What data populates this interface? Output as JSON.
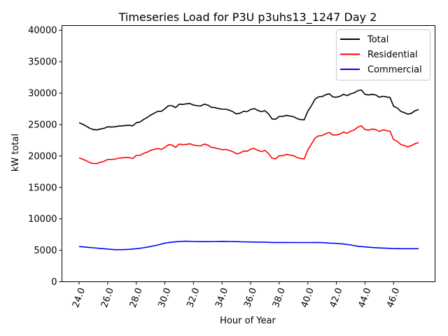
{
  "chart_data": {
    "type": "line",
    "title": "Timeseries Load for P3U p3uhs13_1247  Day 2",
    "xlabel": "Hour of Year",
    "ylabel": "kW total",
    "xlim": [
      22.8,
      48.9
    ],
    "ylim": [
      0,
      40750
    ],
    "xticks": [
      24,
      26,
      28,
      30,
      32,
      34,
      36,
      38,
      40,
      42,
      44,
      46
    ],
    "xtick_labels": [
      "24.0",
      "26.0",
      "28.0",
      "30.0",
      "32.0",
      "34.0",
      "36.0",
      "38.0",
      "40.0",
      "42.0",
      "44.0",
      "46.0"
    ],
    "yticks": [
      0,
      5000,
      10000,
      15000,
      20000,
      25000,
      30000,
      35000,
      40000
    ],
    "ytick_labels": [
      "0",
      "5000",
      "10000",
      "15000",
      "20000",
      "25000",
      "30000",
      "35000",
      "40000"
    ],
    "grid": false,
    "legend_position": "top-right",
    "series": [
      {
        "name": "Total",
        "color": "#000000",
        "points": [
          [
            24.0,
            25300
          ],
          [
            24.25,
            25050
          ],
          [
            24.5,
            24750
          ],
          [
            24.75,
            24400
          ],
          [
            25.0,
            24200
          ],
          [
            25.25,
            24150
          ],
          [
            25.5,
            24300
          ],
          [
            25.75,
            24400
          ],
          [
            26.0,
            24650
          ],
          [
            26.25,
            24600
          ],
          [
            26.5,
            24650
          ],
          [
            26.75,
            24750
          ],
          [
            27.0,
            24800
          ],
          [
            27.25,
            24850
          ],
          [
            27.5,
            24900
          ],
          [
            27.75,
            24800
          ],
          [
            28.0,
            25300
          ],
          [
            28.25,
            25400
          ],
          [
            28.5,
            25800
          ],
          [
            28.75,
            26100
          ],
          [
            29.0,
            26500
          ],
          [
            29.25,
            26800
          ],
          [
            29.5,
            27100
          ],
          [
            29.75,
            27100
          ],
          [
            30.0,
            27500
          ],
          [
            30.25,
            28000
          ],
          [
            30.5,
            28000
          ],
          [
            30.75,
            27700
          ],
          [
            31.0,
            28250
          ],
          [
            31.25,
            28200
          ],
          [
            31.5,
            28300
          ],
          [
            31.75,
            28350
          ],
          [
            32.0,
            28100
          ],
          [
            32.25,
            28000
          ],
          [
            32.5,
            27950
          ],
          [
            32.75,
            28250
          ],
          [
            33.0,
            28100
          ],
          [
            33.25,
            27750
          ],
          [
            33.5,
            27700
          ],
          [
            33.75,
            27550
          ],
          [
            34.0,
            27450
          ],
          [
            34.25,
            27450
          ],
          [
            34.5,
            27300
          ],
          [
            34.75,
            27050
          ],
          [
            35.0,
            26700
          ],
          [
            35.25,
            26800
          ],
          [
            35.5,
            27100
          ],
          [
            35.75,
            27050
          ],
          [
            36.0,
            27400
          ],
          [
            36.25,
            27550
          ],
          [
            36.5,
            27250
          ],
          [
            36.75,
            27050
          ],
          [
            37.0,
            27200
          ],
          [
            37.25,
            26700
          ],
          [
            37.5,
            25900
          ],
          [
            37.75,
            25850
          ],
          [
            38.0,
            26300
          ],
          [
            38.25,
            26300
          ],
          [
            38.5,
            26450
          ],
          [
            38.75,
            26350
          ],
          [
            39.0,
            26250
          ],
          [
            39.25,
            25950
          ],
          [
            39.5,
            25800
          ],
          [
            39.75,
            25750
          ],
          [
            40.0,
            27100
          ],
          [
            40.25,
            28000
          ],
          [
            40.5,
            29050
          ],
          [
            40.75,
            29400
          ],
          [
            41.0,
            29450
          ],
          [
            41.25,
            29750
          ],
          [
            41.5,
            29900
          ],
          [
            41.75,
            29400
          ],
          [
            42.0,
            29350
          ],
          [
            42.25,
            29500
          ],
          [
            42.5,
            29800
          ],
          [
            42.75,
            29600
          ],
          [
            43.0,
            29900
          ],
          [
            43.25,
            30050
          ],
          [
            43.5,
            30400
          ],
          [
            43.75,
            30500
          ],
          [
            44.0,
            29800
          ],
          [
            44.25,
            29700
          ],
          [
            44.5,
            29800
          ],
          [
            44.75,
            29700
          ],
          [
            45.0,
            29350
          ],
          [
            45.25,
            29500
          ],
          [
            45.5,
            29400
          ],
          [
            45.75,
            29300
          ],
          [
            46.0,
            27900
          ],
          [
            46.25,
            27650
          ],
          [
            46.5,
            27100
          ],
          [
            46.75,
            26900
          ],
          [
            47.0,
            26650
          ],
          [
            47.25,
            26800
          ],
          [
            47.5,
            27200
          ],
          [
            47.75,
            27400
          ]
        ]
      },
      {
        "name": "Residential",
        "color": "#ff0000",
        "points": [
          [
            24.0,
            19700
          ],
          [
            24.25,
            19500
          ],
          [
            24.5,
            19250
          ],
          [
            24.75,
            18950
          ],
          [
            25.0,
            18800
          ],
          [
            25.25,
            18800
          ],
          [
            25.5,
            19000
          ],
          [
            25.75,
            19150
          ],
          [
            26.0,
            19450
          ],
          [
            26.25,
            19450
          ],
          [
            26.5,
            19500
          ],
          [
            26.75,
            19650
          ],
          [
            27.0,
            19700
          ],
          [
            27.25,
            19750
          ],
          [
            27.5,
            19750
          ],
          [
            27.75,
            19600
          ],
          [
            28.0,
            20100
          ],
          [
            28.25,
            20100
          ],
          [
            28.5,
            20400
          ],
          [
            28.75,
            20600
          ],
          [
            29.0,
            20900
          ],
          [
            29.25,
            21050
          ],
          [
            29.5,
            21200
          ],
          [
            29.75,
            21050
          ],
          [
            30.0,
            21350
          ],
          [
            30.25,
            21800
          ],
          [
            30.5,
            21750
          ],
          [
            30.75,
            21350
          ],
          [
            31.0,
            21900
          ],
          [
            31.25,
            21800
          ],
          [
            31.5,
            21850
          ],
          [
            31.75,
            21950
          ],
          [
            32.0,
            21750
          ],
          [
            32.25,
            21650
          ],
          [
            32.5,
            21600
          ],
          [
            32.75,
            21900
          ],
          [
            33.0,
            21750
          ],
          [
            33.25,
            21400
          ],
          [
            33.5,
            21300
          ],
          [
            33.75,
            21150
          ],
          [
            34.0,
            21000
          ],
          [
            34.25,
            21050
          ],
          [
            34.5,
            20900
          ],
          [
            34.75,
            20700
          ],
          [
            35.0,
            20350
          ],
          [
            35.25,
            20450
          ],
          [
            35.5,
            20800
          ],
          [
            35.75,
            20750
          ],
          [
            36.0,
            21100
          ],
          [
            36.25,
            21200
          ],
          [
            36.5,
            20900
          ],
          [
            36.75,
            20700
          ],
          [
            37.0,
            20900
          ],
          [
            37.25,
            20400
          ],
          [
            37.5,
            19650
          ],
          [
            37.75,
            19550
          ],
          [
            38.0,
            20050
          ],
          [
            38.25,
            20050
          ],
          [
            38.5,
            20250
          ],
          [
            38.75,
            20150
          ],
          [
            39.0,
            20050
          ],
          [
            39.25,
            19750
          ],
          [
            39.5,
            19600
          ],
          [
            39.75,
            19550
          ],
          [
            40.0,
            20950
          ],
          [
            40.25,
            21900
          ],
          [
            40.5,
            22850
          ],
          [
            40.75,
            23200
          ],
          [
            41.0,
            23250
          ],
          [
            41.25,
            23550
          ],
          [
            41.5,
            23750
          ],
          [
            41.75,
            23350
          ],
          [
            42.0,
            23350
          ],
          [
            42.25,
            23500
          ],
          [
            42.5,
            23800
          ],
          [
            42.75,
            23600
          ],
          [
            43.0,
            23950
          ],
          [
            43.25,
            24150
          ],
          [
            43.5,
            24600
          ],
          [
            43.75,
            24800
          ],
          [
            44.0,
            24200
          ],
          [
            44.25,
            24100
          ],
          [
            44.5,
            24300
          ],
          [
            44.75,
            24200
          ],
          [
            45.0,
            23900
          ],
          [
            45.25,
            24150
          ],
          [
            45.5,
            24050
          ],
          [
            45.75,
            23950
          ],
          [
            46.0,
            22600
          ],
          [
            46.25,
            22350
          ],
          [
            46.5,
            21850
          ],
          [
            46.75,
            21650
          ],
          [
            47.0,
            21450
          ],
          [
            47.25,
            21650
          ],
          [
            47.5,
            21950
          ],
          [
            47.75,
            22150
          ]
        ]
      },
      {
        "name": "Commercial",
        "color": "#0000ff",
        "points": [
          [
            24.0,
            5600
          ],
          [
            24.5,
            5500
          ],
          [
            25.0,
            5400
          ],
          [
            25.5,
            5300
          ],
          [
            26.0,
            5200
          ],
          [
            26.5,
            5100
          ],
          [
            27.0,
            5100
          ],
          [
            27.5,
            5150
          ],
          [
            28.0,
            5250
          ],
          [
            28.5,
            5400
          ],
          [
            29.0,
            5600
          ],
          [
            29.5,
            5850
          ],
          [
            30.0,
            6150
          ],
          [
            30.5,
            6300
          ],
          [
            31.0,
            6400
          ],
          [
            31.5,
            6450
          ],
          [
            32.0,
            6400
          ],
          [
            32.5,
            6380
          ],
          [
            33.0,
            6380
          ],
          [
            33.5,
            6400
          ],
          [
            34.0,
            6420
          ],
          [
            34.5,
            6400
          ],
          [
            35.0,
            6380
          ],
          [
            35.5,
            6350
          ],
          [
            36.0,
            6320
          ],
          [
            36.5,
            6300
          ],
          [
            37.0,
            6300
          ],
          [
            37.5,
            6250
          ],
          [
            38.0,
            6250
          ],
          [
            38.5,
            6250
          ],
          [
            39.0,
            6230
          ],
          [
            39.5,
            6230
          ],
          [
            40.0,
            6230
          ],
          [
            40.5,
            6250
          ],
          [
            41.0,
            6220
          ],
          [
            41.5,
            6150
          ],
          [
            42.0,
            6100
          ],
          [
            42.5,
            6000
          ],
          [
            43.0,
            5850
          ],
          [
            43.5,
            5650
          ],
          [
            44.0,
            5550
          ],
          [
            44.5,
            5450
          ],
          [
            45.0,
            5380
          ],
          [
            45.5,
            5330
          ],
          [
            46.0,
            5280
          ],
          [
            46.5,
            5250
          ],
          [
            47.0,
            5250
          ],
          [
            47.5,
            5250
          ],
          [
            47.75,
            5250
          ]
        ]
      }
    ]
  }
}
